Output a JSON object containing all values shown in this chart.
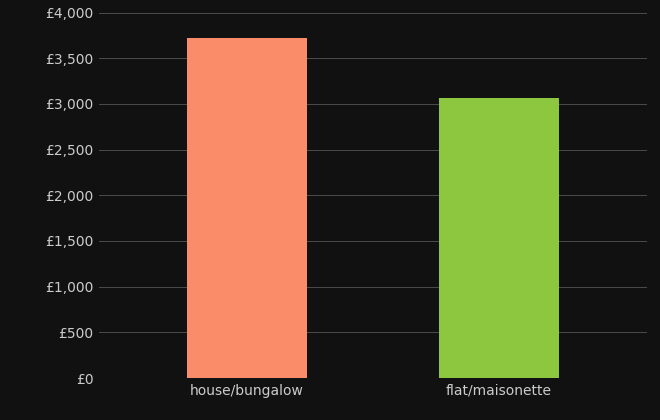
{
  "categories": [
    "house/bungalow",
    "flat/maisonette"
  ],
  "values": [
    3720,
    3060
  ],
  "bar_colors": [
    "#FA8C6A",
    "#8DC63F"
  ],
  "background_color": "#111111",
  "text_color": "#cccccc",
  "grid_color": "#555555",
  "ylim": [
    0,
    4000
  ],
  "yticks": [
    0,
    500,
    1000,
    1500,
    2000,
    2500,
    3000,
    3500,
    4000
  ],
  "bar_width": 0.22,
  "tick_fontsize": 10,
  "label_fontsize": 10,
  "x_positions": [
    0.27,
    0.73
  ]
}
